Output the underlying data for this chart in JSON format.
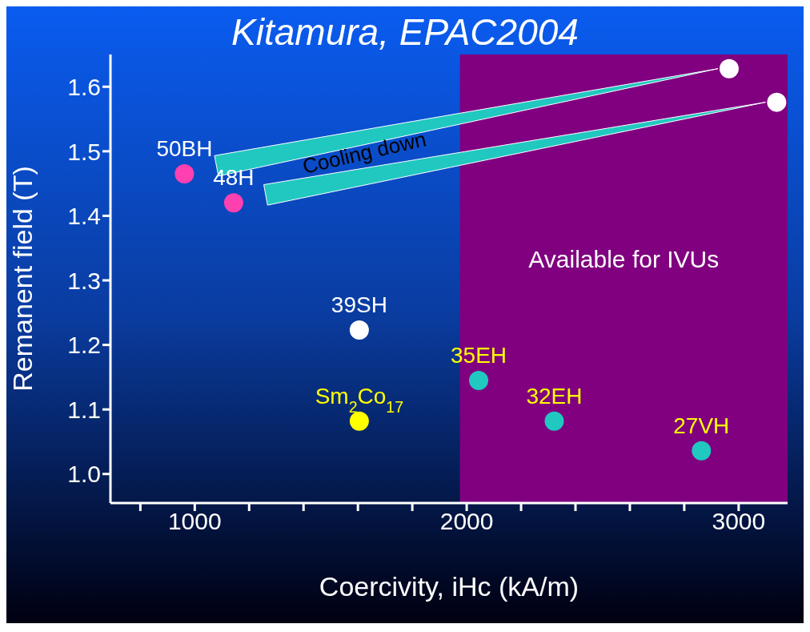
{
  "chart_data": {
    "type": "scatter",
    "title": "Kitamura, EPAC2004",
    "xlabel": "Coercivity, iHc (kA/m)",
    "ylabel": "Remanent field (T)",
    "series": [
      {
        "color": "#ff40b0",
        "x": [
          962,
          1143
        ],
        "values": [
          1.465,
          1.42
        ]
      },
      {
        "color": "#ffffff",
        "x": [
          1605,
          2965,
          3140
        ],
        "values": [
          1.223,
          1.628,
          1.576
        ]
      },
      {
        "color": "#ffff00",
        "x": [
          1605
        ],
        "values": [
          1.082
        ]
      },
      {
        "color": "#20c8c0",
        "x": [
          2044,
          2322,
          2863
        ],
        "values": [
          1.145,
          1.082,
          1.036
        ]
      }
    ],
    "xlim": [
      690,
      3180
    ],
    "ylim": [
      0.955,
      1.65
    ],
    "xticks": [
      {
        "value": 800,
        "label": null
      },
      1000,
      {
        "value": 1200,
        "label": null
      },
      {
        "value": 1400,
        "label": null
      },
      {
        "value": 1600,
        "label": null
      },
      {
        "value": 1800,
        "label": null
      },
      2000,
      {
        "value": 2200,
        "label": null
      },
      {
        "value": 2400,
        "label": null
      },
      {
        "value": 2600,
        "label": null
      },
      {
        "value": 2800,
        "label": null
      },
      3000
    ],
    "yticks": [
      {
        "value": 1,
        "label": "1.0"
      },
      1.1,
      1.2,
      1.3,
      1.4,
      1.5,
      1.6
    ],
    "bands": [
      {
        "axis": "x",
        "from": 1975,
        "to": 3180,
        "label": "Available for IVUs",
        "color": "#800080"
      }
    ],
    "annotations": [
      "Cooling down",
      {
        "text": "50BH",
        "x": 962,
        "y": 1.465
      },
      {
        "text": "48H",
        "x": 1143,
        "y": 1.42
      },
      {
        "text": "39SH",
        "x": 1605,
        "y": 1.223
      },
      {
        "text": "Sm$_{2}$Co$_{17}$",
        "x": 1605,
        "y": 1.082
      },
      {
        "text": "35EH",
        "x": 2044,
        "y": 1.145
      },
      {
        "text": "32EH",
        "x": 2322,
        "y": 1.082
      },
      {
        "text": "27VH",
        "x": 2863,
        "y": 1.036
      }
    ],
    "grid": false,
    "legend": false,
    "marker": "circle"
  }
}
